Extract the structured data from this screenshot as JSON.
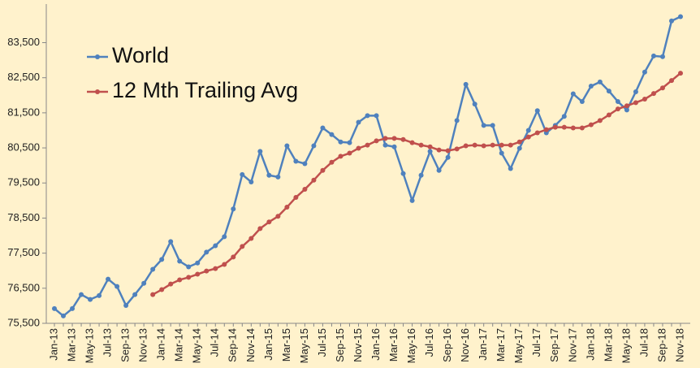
{
  "chart_data": {
    "type": "line",
    "categories": [
      "Jan-13",
      null,
      "Mar-13",
      null,
      "May-13",
      null,
      "Jul-13",
      null,
      "Sep-13",
      null,
      "Nov-13",
      null,
      "Jan-14",
      null,
      "Mar-14",
      null,
      "May-14",
      null,
      "Jul-14",
      null,
      "Sep-14",
      null,
      "Nov-14",
      null,
      "Jan-15",
      null,
      "Mar-15",
      null,
      "May-15",
      null,
      "Jul-15",
      null,
      "Sep-15",
      null,
      "Nov-15",
      null,
      "Jan-16",
      null,
      "Mar-16",
      null,
      "May-16",
      null,
      "Jul-16",
      null,
      "Sep-16",
      null,
      "Nov-16",
      null,
      "Jan-17",
      null,
      "Mar-17",
      null,
      "May-17",
      null,
      "Jul-17",
      null,
      "Sep-17",
      null,
      "Nov-17",
      null,
      "Jan-18",
      null,
      "Mar-18",
      null,
      "May-18",
      null,
      "Jul-18",
      null,
      "Sep-18",
      null,
      "Nov-18"
    ],
    "series": [
      {
        "name": "World",
        "color": "#4f81bd",
        "values": [
          75920,
          75710,
          75920,
          76320,
          76180,
          76290,
          76760,
          76550,
          76010,
          76320,
          76640,
          77040,
          77320,
          77830,
          77270,
          77110,
          77220,
          77530,
          77710,
          77970,
          78760,
          79740,
          79530,
          80400,
          79720,
          79670,
          80560,
          80120,
          80050,
          80560,
          81070,
          80880,
          80670,
          80650,
          81230,
          81420,
          81420,
          80580,
          80530,
          79770,
          79000,
          79720,
          80400,
          79860,
          80230,
          81280,
          82310,
          81750,
          81140,
          81140,
          80350,
          79910,
          80490,
          81000,
          81560,
          80930,
          81140,
          81400,
          82040,
          81820,
          82260,
          82380,
          82120,
          81820,
          81580,
          82100,
          82660,
          83120,
          83100,
          84120,
          84240
        ]
      },
      {
        "name": "12 Mth Trailing Avg",
        "color": "#c0504d",
        "values": [
          null,
          null,
          null,
          null,
          null,
          null,
          null,
          null,
          null,
          null,
          null,
          76320,
          76460,
          76620,
          76740,
          76810,
          76900,
          76990,
          77060,
          77180,
          77390,
          77690,
          77920,
          78200,
          78390,
          78550,
          78810,
          79090,
          79320,
          79580,
          79860,
          80090,
          80260,
          80350,
          80490,
          80580,
          80700,
          80770,
          80770,
          80740,
          80650,
          80580,
          80530,
          80440,
          80420,
          80470,
          80560,
          80580,
          80560,
          80580,
          80580,
          80580,
          80670,
          80810,
          80930,
          81020,
          81090,
          81090,
          81070,
          81070,
          81160,
          81280,
          81440,
          81610,
          81700,
          81790,
          81890,
          82050,
          82210,
          82420,
          82630
        ]
      }
    ],
    "ylim": [
      75500,
      84600
    ],
    "yticks": [
      {
        "value": 75500,
        "label": "75,500"
      },
      {
        "value": 76500,
        "label": "76,500"
      },
      {
        "value": 77500,
        "label": "77,500"
      },
      {
        "value": 78500,
        "label": "78,500"
      },
      {
        "value": 79500,
        "label": "79,500"
      },
      {
        "value": 80500,
        "label": "80,500"
      },
      {
        "value": 81500,
        "label": "81,500"
      },
      {
        "value": 82500,
        "label": "82,500"
      },
      {
        "value": 83500,
        "label": "83,500"
      }
    ],
    "grid": false,
    "legend": "upper left"
  }
}
